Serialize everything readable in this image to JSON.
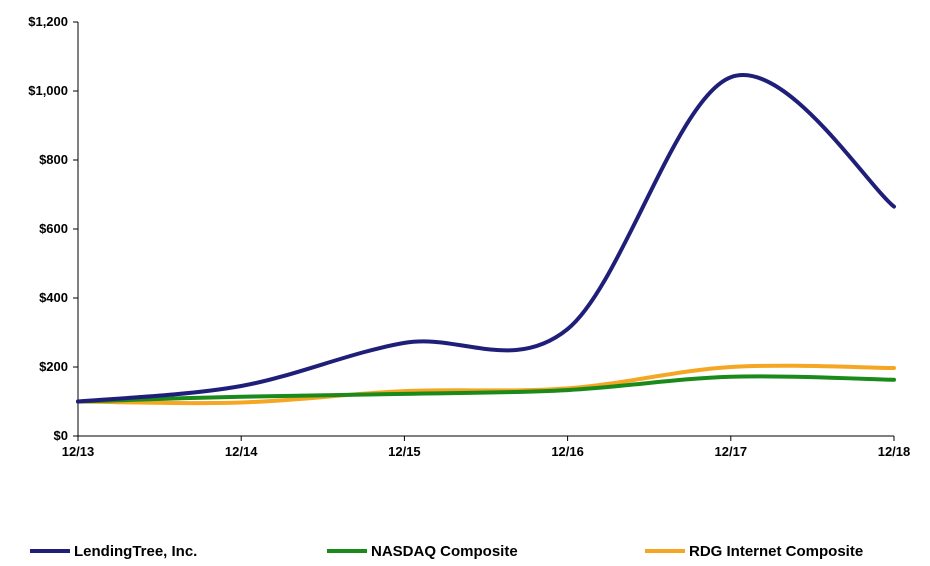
{
  "chart_data": {
    "type": "line",
    "title": "",
    "xlabel": "",
    "ylabel": "",
    "categories": [
      "12/13",
      "12/14",
      "12/15",
      "12/16",
      "12/17",
      "12/18"
    ],
    "y_ticks": [
      "$0",
      "$200",
      "$400",
      "$600",
      "$800",
      "$1,000",
      "$1,200"
    ],
    "ylim": [
      0,
      1200
    ],
    "grid": false,
    "legend_position": "bottom",
    "series": [
      {
        "name": "LendingTree, Inc.",
        "color": "#1f1f7a",
        "values": [
          100,
          145,
          270,
          310,
          1040,
          665
        ]
      },
      {
        "name": "NASDAQ Composite",
        "color": "#1a8a1a",
        "values": [
          100,
          114,
          122,
          133,
          172,
          163
        ]
      },
      {
        "name": "RDG Internet Composite",
        "color": "#f5a623",
        "values": [
          100,
          97,
          130,
          138,
          200,
          197
        ]
      }
    ]
  }
}
